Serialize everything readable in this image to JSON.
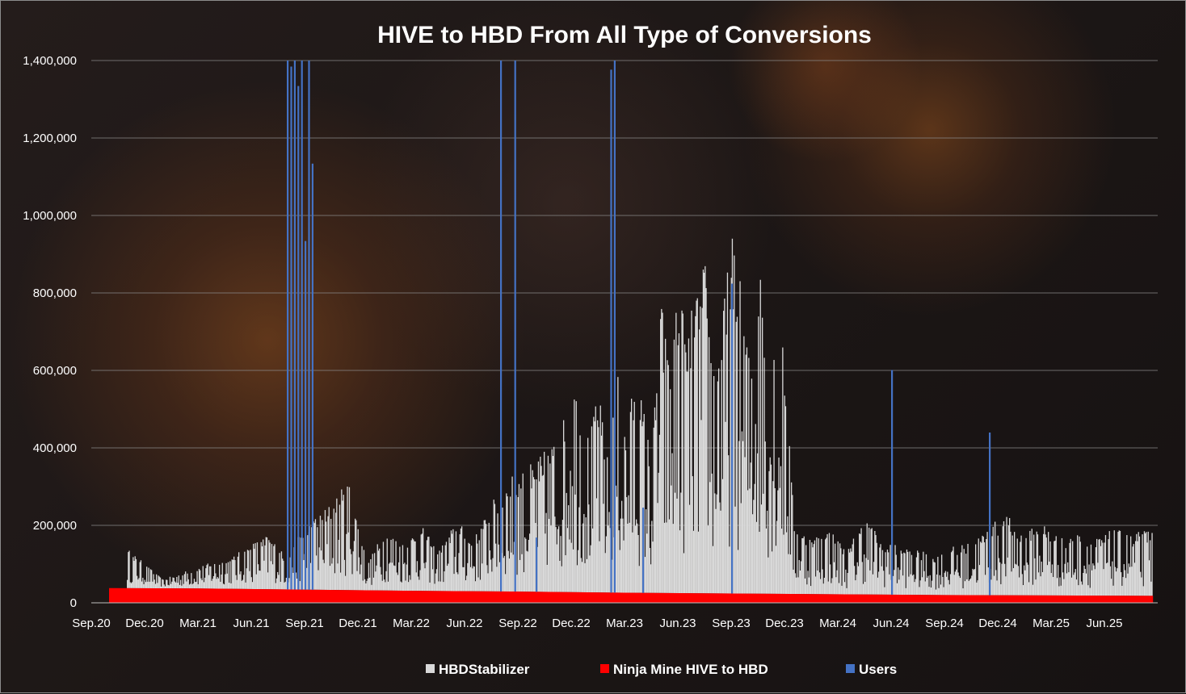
{
  "chart_data": {
    "type": "bar",
    "title": "HIVE to HBD From All Type of Conversions",
    "xlabel": "",
    "ylabel": "",
    "ylim": [
      0,
      1400000
    ],
    "y_ticks": [
      "0",
      "200,000",
      "400,000",
      "600,000",
      "800,000",
      "1,000,000",
      "1,200,000",
      "1,400,000"
    ],
    "y_tick_values": [
      0,
      200000,
      400000,
      600000,
      800000,
      1000000,
      1200000,
      1400000
    ],
    "x_ticks": [
      "Sep.20",
      "Dec.20",
      "Mar.21",
      "Jun.21",
      "Sep.21",
      "Dec.21",
      "Mar.22",
      "Jun.22",
      "Sep.22",
      "Dec.22",
      "Mar.23",
      "Jun.23",
      "Sep.23",
      "Dec.23",
      "Mar.24",
      "Jun.24",
      "Sep.24",
      "Dec.24",
      "Mar.25",
      "Jun.25"
    ],
    "x_range_months": [
      0,
      60
    ],
    "grid": true,
    "legend_position": "bottom",
    "stacked": true,
    "series": [
      {
        "name": "Ninja Mine HIVE to HBD",
        "color": "#ff0000",
        "points": [
          [
            1.0,
            38000
          ],
          [
            6.0,
            37000
          ],
          [
            12.0,
            34000
          ],
          [
            18.0,
            31000
          ],
          [
            24.0,
            29000
          ],
          [
            30.0,
            26000
          ],
          [
            36.0,
            24000
          ],
          [
            42.0,
            22000
          ],
          [
            48.0,
            20000
          ],
          [
            54.0,
            19000
          ],
          [
            59.7,
            18000
          ]
        ]
      },
      {
        "name": "HBDStabilizer",
        "color": "#d9d9d9",
        "points": [
          [
            2.0,
            90000
          ],
          [
            4.0,
            20000
          ],
          [
            6.0,
            50000
          ],
          [
            8.0,
            75000
          ],
          [
            9.0,
            105000
          ],
          [
            10.0,
            125000
          ],
          [
            11.0,
            70000
          ],
          [
            12.0,
            150000
          ],
          [
            13.0,
            180000
          ],
          [
            14.5,
            250000
          ],
          [
            15.5,
            60000
          ],
          [
            16.5,
            140000
          ],
          [
            17.5,
            110000
          ],
          [
            18.5,
            150000
          ],
          [
            19.5,
            90000
          ],
          [
            20.5,
            160000
          ],
          [
            21.5,
            120000
          ],
          [
            22.5,
            200000
          ],
          [
            23.5,
            260000
          ],
          [
            24.5,
            280000
          ],
          [
            25.5,
            320000
          ],
          [
            26.5,
            380000
          ],
          [
            27.0,
            520000
          ],
          [
            27.5,
            420000
          ],
          [
            28.0,
            350000
          ],
          [
            28.5,
            460000
          ],
          [
            29.0,
            310000
          ],
          [
            29.5,
            520000
          ],
          [
            30.0,
            380000
          ],
          [
            30.5,
            470000
          ],
          [
            31.0,
            440000
          ],
          [
            31.5,
            300000
          ],
          [
            32.0,
            680000
          ],
          [
            32.5,
            520000
          ],
          [
            33.0,
            700000
          ],
          [
            33.5,
            600000
          ],
          [
            34.0,
            680000
          ],
          [
            34.5,
            760000
          ],
          [
            35.0,
            540000
          ],
          [
            35.5,
            640000
          ],
          [
            36.0,
            820000
          ],
          [
            36.5,
            700000
          ],
          [
            37.0,
            540000
          ],
          [
            37.5,
            780000
          ],
          [
            38.0,
            600000
          ],
          [
            38.5,
            580000
          ],
          [
            39.0,
            560000
          ],
          [
            39.5,
            160000
          ],
          [
            40.5,
            130000
          ],
          [
            41.5,
            150000
          ],
          [
            42.5,
            100000
          ],
          [
            43.5,
            180000
          ],
          [
            44.5,
            120000
          ],
          [
            45.5,
            110000
          ],
          [
            46.5,
            100000
          ],
          [
            47.5,
            90000
          ],
          [
            48.5,
            110000
          ],
          [
            49.5,
            120000
          ],
          [
            50.5,
            160000
          ],
          [
            51.5,
            180000
          ],
          [
            52.5,
            140000
          ],
          [
            53.5,
            170000
          ],
          [
            54.5,
            130000
          ],
          [
            55.5,
            140000
          ],
          [
            56.5,
            130000
          ],
          [
            57.5,
            150000
          ],
          [
            58.5,
            140000
          ],
          [
            59.5,
            150000
          ]
        ]
      },
      {
        "name": "Users",
        "color": "#4472c4",
        "points": [
          [
            11.0,
            1400000
          ],
          [
            11.2,
            1350000
          ],
          [
            11.4,
            1400000
          ],
          [
            11.6,
            1300000
          ],
          [
            11.8,
            1400000
          ],
          [
            12.0,
            900000
          ],
          [
            12.2,
            1400000
          ],
          [
            12.4,
            1100000
          ],
          [
            23.0,
            1400000
          ],
          [
            23.8,
            1400000
          ],
          [
            25.0,
            140000
          ],
          [
            29.2,
            1350000
          ],
          [
            29.4,
            1400000
          ],
          [
            31.0,
            220000
          ],
          [
            36.0,
            800000
          ],
          [
            45.0,
            580000
          ],
          [
            50.5,
            420000
          ]
        ]
      }
    ]
  }
}
